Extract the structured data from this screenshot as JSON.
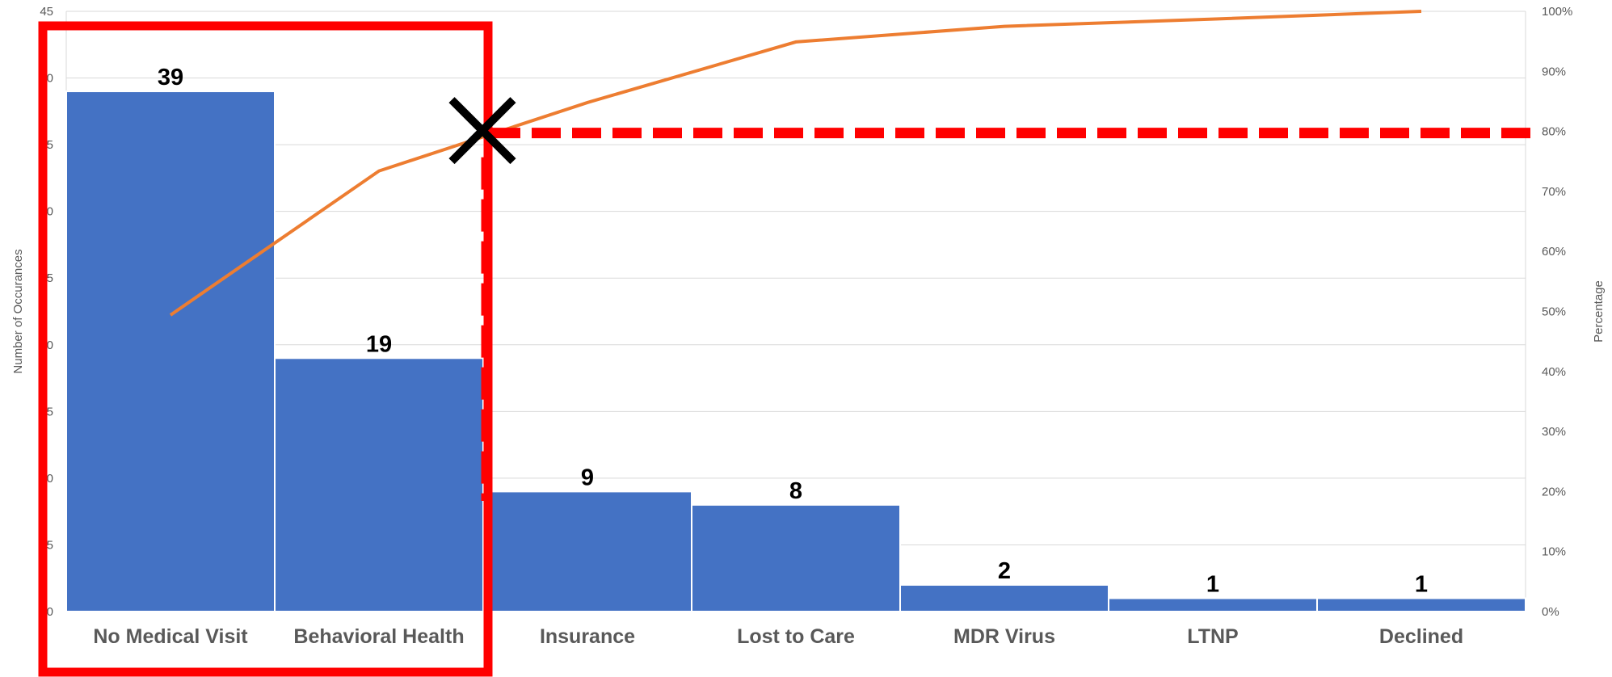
{
  "chart_data": {
    "type": "bar",
    "categories": [
      "No Medical Visit",
      "Behavioral Health",
      "Insurance",
      "Lost to Care",
      "MDR Virus",
      "LTNP",
      "Declined"
    ],
    "series": [
      {
        "type": "bar",
        "values": [
          39,
          19,
          9,
          8,
          2,
          1,
          1
        ],
        "color": "#4472C4"
      },
      {
        "type": "line",
        "axis": "right",
        "values": [
          49.4,
          73.4,
          84.8,
          94.9,
          97.5,
          98.7,
          100
        ],
        "color": "#ED7D31"
      }
    ],
    "data_labels": [
      "39",
      "19",
      "9",
      "8",
      "2",
      "1",
      "1"
    ],
    "ylabel": "Number of Occurances",
    "y2label": "Percentage",
    "ylim": [
      0,
      45
    ],
    "y2lim": [
      0,
      100
    ],
    "y_ticks": [
      "0",
      "5",
      "10",
      "15",
      "20",
      "25",
      "30",
      "35",
      "40",
      "45"
    ],
    "y2_ticks": [
      "0%",
      "10%",
      "20%",
      "30%",
      "40%",
      "50%",
      "60%",
      "70%",
      "80%",
      "90%",
      "100%"
    ],
    "grid": true,
    "legend": "none",
    "annotations": {
      "threshold_percent": 80,
      "threshold_color": "#FF0000",
      "highlight_categories": [
        0,
        1
      ],
      "highlight_color": "#FF0000",
      "cross_marker_color": "#000000"
    }
  }
}
